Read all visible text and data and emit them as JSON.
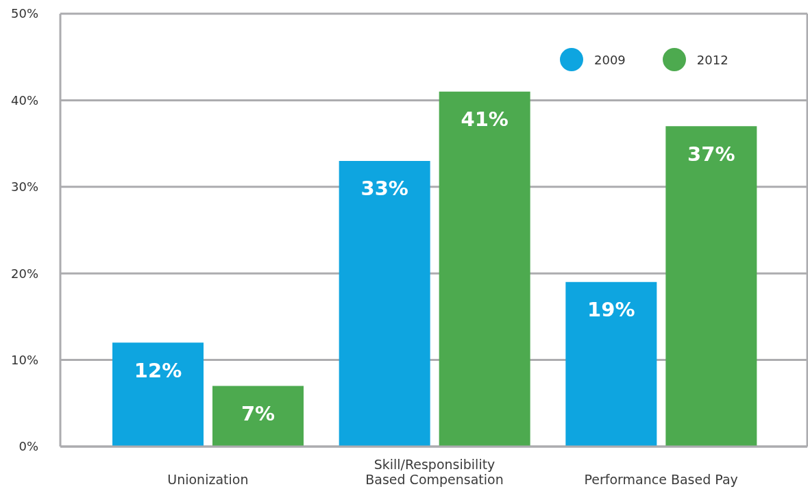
{
  "chart_data": {
    "type": "bar",
    "categories": [
      "Unionization",
      "Skill/Responsibility Based Compensation",
      "Performance Based Pay"
    ],
    "series": [
      {
        "name": "2009",
        "color": "#0ea5e0",
        "values": [
          12,
          33,
          19
        ],
        "value_labels": [
          "12%",
          "33%",
          "19%"
        ]
      },
      {
        "name": "2012",
        "color": "#4daa4f",
        "values": [
          7,
          41,
          37
        ],
        "value_labels": [
          "7%",
          "41%",
          "37%"
        ]
      }
    ],
    "ylim": [
      0,
      50
    ],
    "yticks": [
      {
        "value": 0,
        "label": "0%"
      },
      {
        "value": 10,
        "label": "10%"
      },
      {
        "value": 20,
        "label": "20%"
      },
      {
        "value": 30,
        "label": "30%"
      },
      {
        "value": 40,
        "label": "40%"
      },
      {
        "value": 50,
        "label": "50%"
      }
    ],
    "grid": "y",
    "legend": "top right"
  }
}
